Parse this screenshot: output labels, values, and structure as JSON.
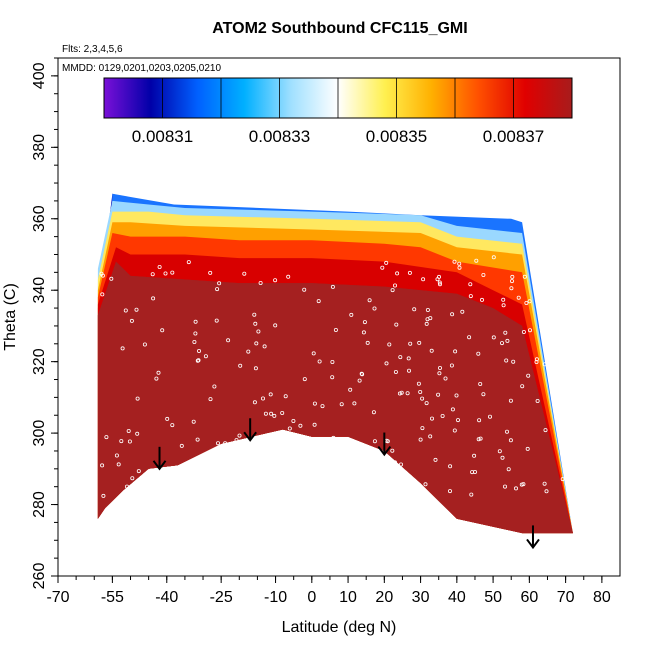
{
  "chart_data": {
    "type": "heatmap",
    "title": "ATOM2 Southbound CFC115_GMI",
    "flights_note": "Flts: 2,3,4,5,6",
    "dates_note": "MMDD: 0129,0201,0203,0205,0210",
    "xlabel": "Latitude (deg N)",
    "ylabel": "Theta (C)",
    "xlim": [
      -70,
      85
    ],
    "ylim": [
      260,
      405
    ],
    "x_ticks": [
      -70,
      -55,
      -40,
      -25,
      -10,
      0,
      10,
      20,
      30,
      40,
      50,
      60,
      70,
      80
    ],
    "x_tick_labels": [
      "-70",
      "-55",
      "-40",
      "-25",
      "-10",
      "0",
      "10",
      "20",
      "30",
      "40",
      "50",
      "60",
      "70",
      "80"
    ],
    "y_ticks": [
      260,
      280,
      300,
      320,
      340,
      360,
      380,
      400
    ],
    "y_tick_labels": [
      "260",
      "280",
      "300",
      "320",
      "340",
      "360",
      "380",
      "400"
    ],
    "colorbar": {
      "min": 0.0083,
      "max": 0.00838,
      "ticks": [
        0.00831,
        0.00833,
        0.00835,
        0.00837
      ],
      "tick_labels": [
        "0.00831",
        "0.00833",
        "0.00835",
        "0.00837"
      ],
      "colors": [
        "#7a10d8",
        "#0000a8",
        "#0060ff",
        "#00b0ff",
        "#a0e0ff",
        "#ffffff",
        "#fff050",
        "#ffb000",
        "#ff5000",
        "#e00000",
        "#a81c1c"
      ]
    },
    "tropopause_arrows": [
      {
        "lat": -42,
        "theta": 290
      },
      {
        "lat": -17,
        "theta": 298
      },
      {
        "lat": 20,
        "theta": 294
      },
      {
        "lat": 61,
        "theta": 268
      }
    ],
    "data_boundary": {
      "top": [
        [
          -59,
          335
        ],
        [
          -55,
          367
        ],
        [
          -38,
          362
        ],
        [
          10,
          360
        ],
        [
          30,
          357
        ],
        [
          40,
          355
        ],
        [
          55,
          355
        ],
        [
          58,
          358
        ],
        [
          58,
          340
        ]
      ],
      "bottom": [
        [
          72,
          272
        ],
        [
          58,
          272
        ],
        [
          40,
          276
        ],
        [
          30,
          286
        ],
        [
          20,
          295
        ],
        [
          10,
          299
        ],
        [
          0,
          299
        ],
        [
          -8,
          301
        ],
        [
          -25,
          297
        ],
        [
          -37,
          291
        ],
        [
          -45,
          290
        ],
        [
          -52,
          284
        ],
        [
          -57,
          279
        ],
        [
          -59,
          276
        ]
      ]
    },
    "bands": [
      {
        "label": "0.00838",
        "top": [
          [
            -59,
            333
          ],
          [
            -54,
            348
          ],
          [
            -50,
            344
          ],
          [
            -35,
            343
          ],
          [
            -20,
            342
          ],
          [
            0,
            342
          ],
          [
            20,
            341
          ],
          [
            40,
            339
          ],
          [
            50,
            335
          ],
          [
            58,
            330
          ]
        ]
      },
      {
        "label": "0.00837",
        "top": [
          [
            -59,
            336
          ],
          [
            -54,
            352
          ],
          [
            -50,
            350
          ],
          [
            -35,
            350
          ],
          [
            -20,
            349
          ],
          [
            0,
            349
          ],
          [
            20,
            348
          ],
          [
            40,
            345
          ],
          [
            50,
            340
          ],
          [
            58,
            336
          ]
        ]
      },
      {
        "label": "0.00836",
        "top": [
          [
            -59,
            338
          ],
          [
            -55,
            356
          ],
          [
            -50,
            355
          ],
          [
            -35,
            355
          ],
          [
            -20,
            354
          ],
          [
            0,
            354
          ],
          [
            20,
            353
          ],
          [
            30,
            352
          ],
          [
            40,
            348
          ],
          [
            58,
            345
          ]
        ]
      },
      {
        "label": "0.00835",
        "top": [
          [
            -59,
            340
          ],
          [
            -55,
            359
          ],
          [
            -50,
            359
          ],
          [
            -35,
            358
          ],
          [
            0,
            357
          ],
          [
            30,
            356
          ],
          [
            40,
            352
          ],
          [
            58,
            350
          ]
        ]
      },
      {
        "label": "0.00834",
        "top": [
          [
            -59,
            343
          ],
          [
            -55,
            362
          ],
          [
            -45,
            362
          ],
          [
            -35,
            361
          ],
          [
            0,
            360
          ],
          [
            30,
            359
          ],
          [
            40,
            355
          ],
          [
            58,
            353
          ]
        ]
      },
      {
        "label": "0.00832",
        "top": [
          [
            -59,
            346
          ],
          [
            -55,
            365
          ],
          [
            -45,
            364
          ],
          [
            -35,
            363
          ],
          [
            0,
            362
          ],
          [
            30,
            361
          ],
          [
            40,
            358
          ],
          [
            58,
            356
          ]
        ]
      },
      {
        "label": "0.00831",
        "top": [
          [
            -55,
            367
          ],
          [
            -38,
            364
          ],
          [
            10,
            362
          ],
          [
            30,
            361
          ],
          [
            55,
            360
          ],
          [
            58,
            359
          ]
        ]
      }
    ]
  }
}
